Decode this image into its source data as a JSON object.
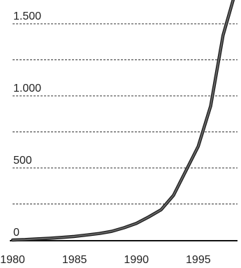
{
  "chart_data": {
    "type": "line",
    "title": "",
    "xlabel": "",
    "ylabel": "",
    "xlim": [
      1980,
      1998
    ],
    "ylim": [
      0,
      1700
    ],
    "grid": true,
    "y_ticks": [
      {
        "value": 0,
        "label": "0"
      },
      {
        "value": 500,
        "label": "500"
      },
      {
        "value": 1000,
        "label": "1.000"
      },
      {
        "value": 1500,
        "label": "1.500"
      }
    ],
    "y_gridlines": [
      250,
      500,
      750,
      1000,
      1250,
      1500
    ],
    "x_ticks": [
      {
        "value": 1980,
        "label": "1980"
      },
      {
        "value": 1985,
        "label": "1985"
      },
      {
        "value": 1990,
        "label": "1990"
      },
      {
        "value": 1995,
        "label": "1995"
      }
    ],
    "series": [
      {
        "x": [
          1980,
          1981,
          1982,
          1983,
          1984,
          1985,
          1986,
          1987,
          1988,
          1989,
          1990,
          1991,
          1992,
          1993,
          1994,
          1995,
          1996,
          1997,
          1998
        ],
        "y": [
          0,
          3,
          8,
          12,
          18,
          25,
          35,
          45,
          60,
          85,
          115,
          160,
          210,
          310,
          480,
          650,
          930,
          1420,
          1720
        ]
      }
    ],
    "colors": {
      "line": "#666666",
      "line_outline": "#1a1a1a",
      "grid": "#333333",
      "axis": "#111111"
    }
  }
}
